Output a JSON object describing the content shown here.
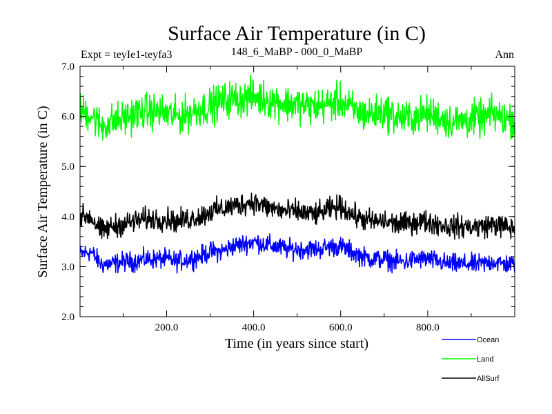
{
  "chart_data": {
    "type": "line",
    "title": "Surface Air Temperature (in C)",
    "subtitle_left": "Expt = teyIe1-teyfa3",
    "subtitle_center": "148_6_MaBP - 000_0_MaBP",
    "subtitle_right": "Ann",
    "xlabel": "Time (in years since start)",
    "ylabel": "Surface Air Temperature (in C)",
    "xlim": [
      1,
      1000
    ],
    "ylim": [
      2.0,
      7.0
    ],
    "x_ticks": [
      200,
      400,
      600,
      800
    ],
    "x_tick_labels": [
      "200.0",
      "400.0",
      "600.0",
      "800.0"
    ],
    "y_ticks": [
      2.0,
      3.0,
      4.0,
      5.0,
      6.0,
      7.0
    ],
    "y_tick_labels": [
      "2.0",
      "3.0",
      "4.0",
      "5.0",
      "6.0",
      "7.0"
    ],
    "series": [
      {
        "name": "Ocean",
        "color": "#0000ff",
        "x": [
          1,
          25,
          50,
          75,
          100,
          125,
          150,
          175,
          200,
          225,
          250,
          275,
          300,
          325,
          350,
          375,
          400,
          425,
          450,
          475,
          500,
          525,
          550,
          575,
          600,
          625,
          650,
          675,
          700,
          725,
          750,
          775,
          800,
          825,
          850,
          875,
          900,
          925,
          950,
          975,
          1000
        ],
        "values": [
          3.25,
          3.3,
          3.05,
          3.05,
          3.1,
          3.1,
          3.15,
          3.15,
          3.15,
          3.1,
          3.15,
          3.2,
          3.3,
          3.3,
          3.4,
          3.45,
          3.5,
          3.45,
          3.4,
          3.35,
          3.35,
          3.35,
          3.35,
          3.4,
          3.4,
          3.3,
          3.2,
          3.15,
          3.15,
          3.1,
          3.1,
          3.15,
          3.15,
          3.1,
          3.05,
          3.05,
          3.05,
          3.05,
          3.1,
          3.05,
          3.05
        ]
      },
      {
        "name": "Land",
        "color": "#00ff00",
        "x": [
          1,
          25,
          50,
          75,
          100,
          125,
          150,
          175,
          200,
          225,
          250,
          275,
          300,
          325,
          350,
          375,
          400,
          425,
          450,
          475,
          500,
          525,
          550,
          575,
          600,
          625,
          650,
          675,
          700,
          725,
          750,
          775,
          800,
          825,
          850,
          875,
          900,
          925,
          950,
          975,
          1000
        ],
        "values": [
          6.1,
          6.05,
          5.8,
          5.9,
          5.95,
          6.05,
          6.1,
          6.1,
          6.05,
          6.0,
          6.05,
          6.15,
          6.2,
          6.3,
          6.35,
          6.35,
          6.4,
          6.35,
          6.3,
          6.25,
          6.25,
          6.2,
          6.2,
          6.25,
          6.3,
          6.15,
          6.05,
          6.05,
          6.1,
          6.0,
          5.95,
          6.0,
          6.05,
          6.0,
          5.9,
          5.9,
          5.95,
          5.95,
          6.05,
          5.95,
          5.95
        ]
      },
      {
        "name": "AllSurf",
        "color": "#000000",
        "x": [
          1,
          25,
          50,
          75,
          100,
          125,
          150,
          175,
          200,
          225,
          250,
          275,
          300,
          325,
          350,
          375,
          400,
          425,
          450,
          475,
          500,
          525,
          550,
          575,
          600,
          625,
          650,
          675,
          700,
          725,
          750,
          775,
          800,
          825,
          850,
          875,
          900,
          925,
          950,
          975,
          1000
        ],
        "values": [
          4.0,
          4.0,
          3.7,
          3.8,
          3.85,
          3.9,
          3.95,
          3.95,
          3.95,
          3.9,
          3.95,
          4.0,
          4.1,
          4.15,
          4.2,
          4.25,
          4.3,
          4.2,
          4.15,
          4.1,
          4.1,
          4.05,
          4.05,
          4.15,
          4.2,
          4.05,
          3.95,
          3.9,
          3.9,
          3.85,
          3.85,
          3.9,
          3.9,
          3.85,
          3.8,
          3.8,
          3.8,
          3.8,
          3.85,
          3.8,
          3.75
        ]
      }
    ],
    "legend": "bottom-right",
    "noise_amplitude": [
      0.12,
      0.22,
      0.14
    ]
  }
}
